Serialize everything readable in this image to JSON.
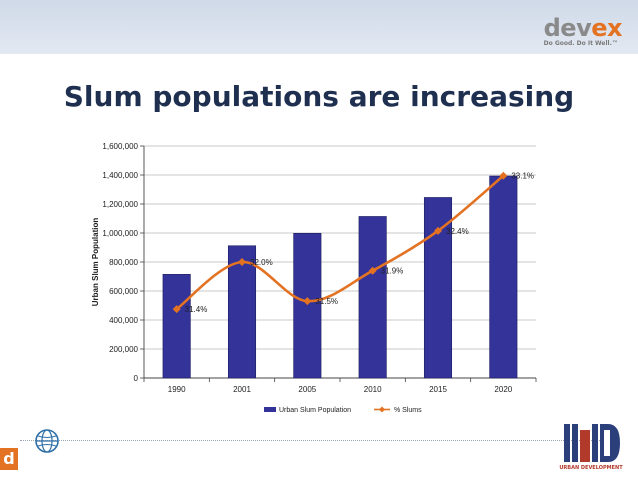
{
  "header": {
    "brand_dev": "dev",
    "brand_ex": "ex",
    "brand_tagline": "Do Good. Do It Well.™",
    "band_color": "#d6deea"
  },
  "slide": {
    "title": "Slum populations are increasing"
  },
  "footer": {
    "left_badge": "d",
    "right_logo_caption": "URBAN DEVELOPMENT",
    "accent_color": "#e37222"
  },
  "chart_data": {
    "type": "bar",
    "categories": [
      "1990",
      "2001",
      "2005",
      "2010",
      "2015",
      "2020"
    ],
    "series": [
      {
        "name": "Urban Slum Population",
        "type": "bar",
        "color": "#33339a",
        "values": [
          715000,
          912000,
          998000,
          1114000,
          1245000,
          1393000
        ]
      },
      {
        "name": "% Slums",
        "type": "line",
        "color": "#e37222",
        "values": [
          475000,
          800000,
          530000,
          740000,
          1015000,
          1395000
        ],
        "labels": [
          "31.4%",
          "32.0%",
          "31.5%",
          "31.9%",
          "32.4%",
          "33.1%"
        ]
      }
    ],
    "ylabel": "Urban Slum Population",
    "xlabel": "",
    "ylim": [
      0,
      1600000
    ],
    "yticks": [
      "0",
      "200,000",
      "400,000",
      "600,000",
      "800,000",
      "1,000,000",
      "1,200,000",
      "1,400,000",
      "1,600,000"
    ],
    "grid": true,
    "legend": "bottom"
  }
}
